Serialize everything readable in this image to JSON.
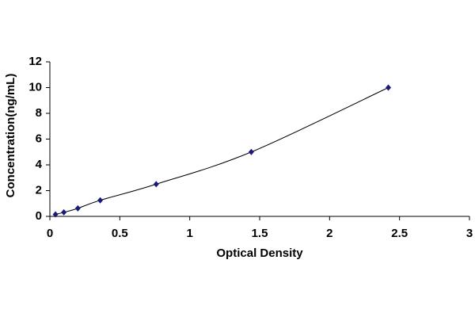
{
  "chart_data": {
    "type": "scatter",
    "x_label": "Optical Density",
    "y_label": "Concentration(ng/mL)",
    "x": [
      0.04,
      0.1,
      0.2,
      0.36,
      0.76,
      1.44,
      2.42
    ],
    "series": [
      {
        "color": "#1a1a7a",
        "values": [
          0.156,
          0.312,
          0.625,
          1.25,
          2.5,
          5,
          10
        ]
      }
    ],
    "xlim": [
      0,
      3
    ],
    "xticks": [
      0,
      0.5,
      1,
      1.5,
      2,
      2.5,
      3
    ],
    "ylim": [
      0,
      12
    ],
    "yticks": [
      0,
      2,
      4,
      6,
      8,
      10,
      12
    ],
    "grid": false,
    "line_color": "#000000"
  }
}
